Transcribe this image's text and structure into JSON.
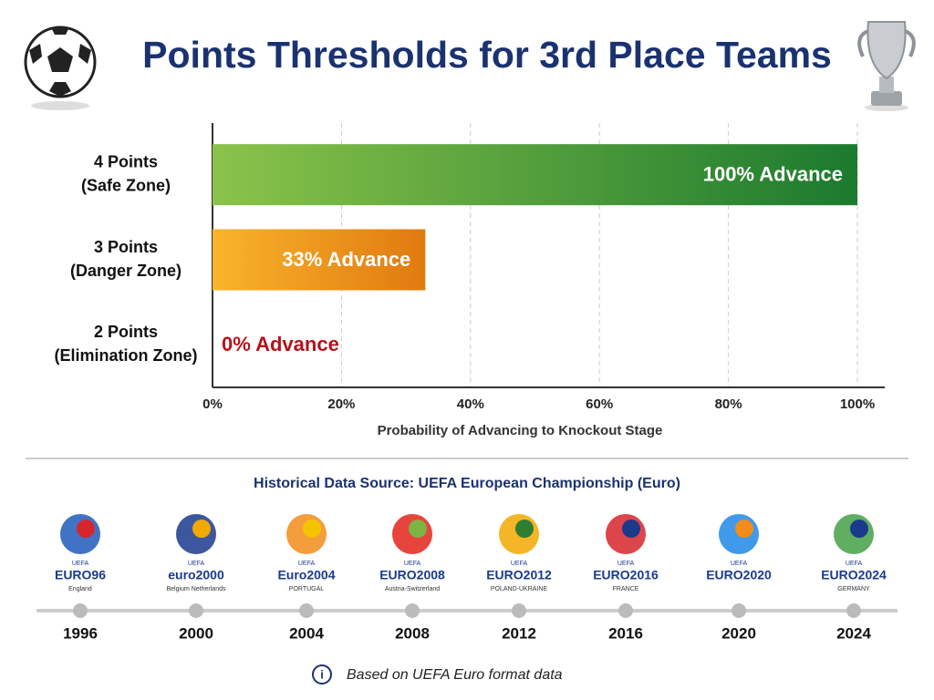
{
  "chart_data": {
    "type": "hbar",
    "title": "Points Thresholds for 3rd Place Teams",
    "categories": [
      [
        "4 Points",
        "(Safe Zone)"
      ],
      [
        "3 Points",
        "(Danger Zone)"
      ],
      [
        "2 Points",
        "(Elimination Zone)"
      ]
    ],
    "values": [
      100,
      33,
      0
    ],
    "value_labels": [
      "100% Advance",
      "33% Advance",
      "0% Advance"
    ],
    "colors": [
      [
        "#8bc34a",
        "#1b7a2e"
      ],
      [
        "#f9b42a",
        "#e07a10"
      ],
      [
        "#ef3b36",
        "#b5121b"
      ]
    ],
    "xlim": [
      0,
      100
    ],
    "xticks": [
      {
        "value": 0,
        "label": "0%"
      },
      {
        "value": 20,
        "label": "20%"
      },
      {
        "value": 40,
        "label": "40%"
      },
      {
        "value": 60,
        "label": "60%"
      },
      {
        "value": 80,
        "label": "80%"
      },
      {
        "value": 100,
        "label": "100%"
      }
    ],
    "xlabel": "Probability of Advancing to Knockout Stage",
    "grid": true
  },
  "history": {
    "title": "Historical Data Source: UEFA European Championship (Euro)",
    "editions": [
      {
        "year": "1996",
        "badge": "UEFA",
        "logo": "EURO96",
        "host": "England"
      },
      {
        "year": "2000",
        "badge": "UEFA",
        "logo": "euro2000",
        "host": "Belgium Netherlands"
      },
      {
        "year": "2004",
        "badge": "UEFA",
        "logo": "Euro2004",
        "host": "PORTUGAL"
      },
      {
        "year": "2008",
        "badge": "UEFA",
        "logo": "EURO2008",
        "host": "Austria-Switzerland"
      },
      {
        "year": "2012",
        "badge": "UEFA",
        "logo": "EURO2012",
        "host": "POLAND-UKRAINE"
      },
      {
        "year": "2016",
        "badge": "UEFA",
        "logo": "EURO2016",
        "host": "FRANCE"
      },
      {
        "year": "2020",
        "badge": "UEFA",
        "logo": "EURO2020",
        "host": ""
      },
      {
        "year": "2024",
        "badge": "UEFA",
        "logo": "EURO2024",
        "host": "GERMANY"
      }
    ],
    "note": "Based on UEFA Euro format data"
  }
}
